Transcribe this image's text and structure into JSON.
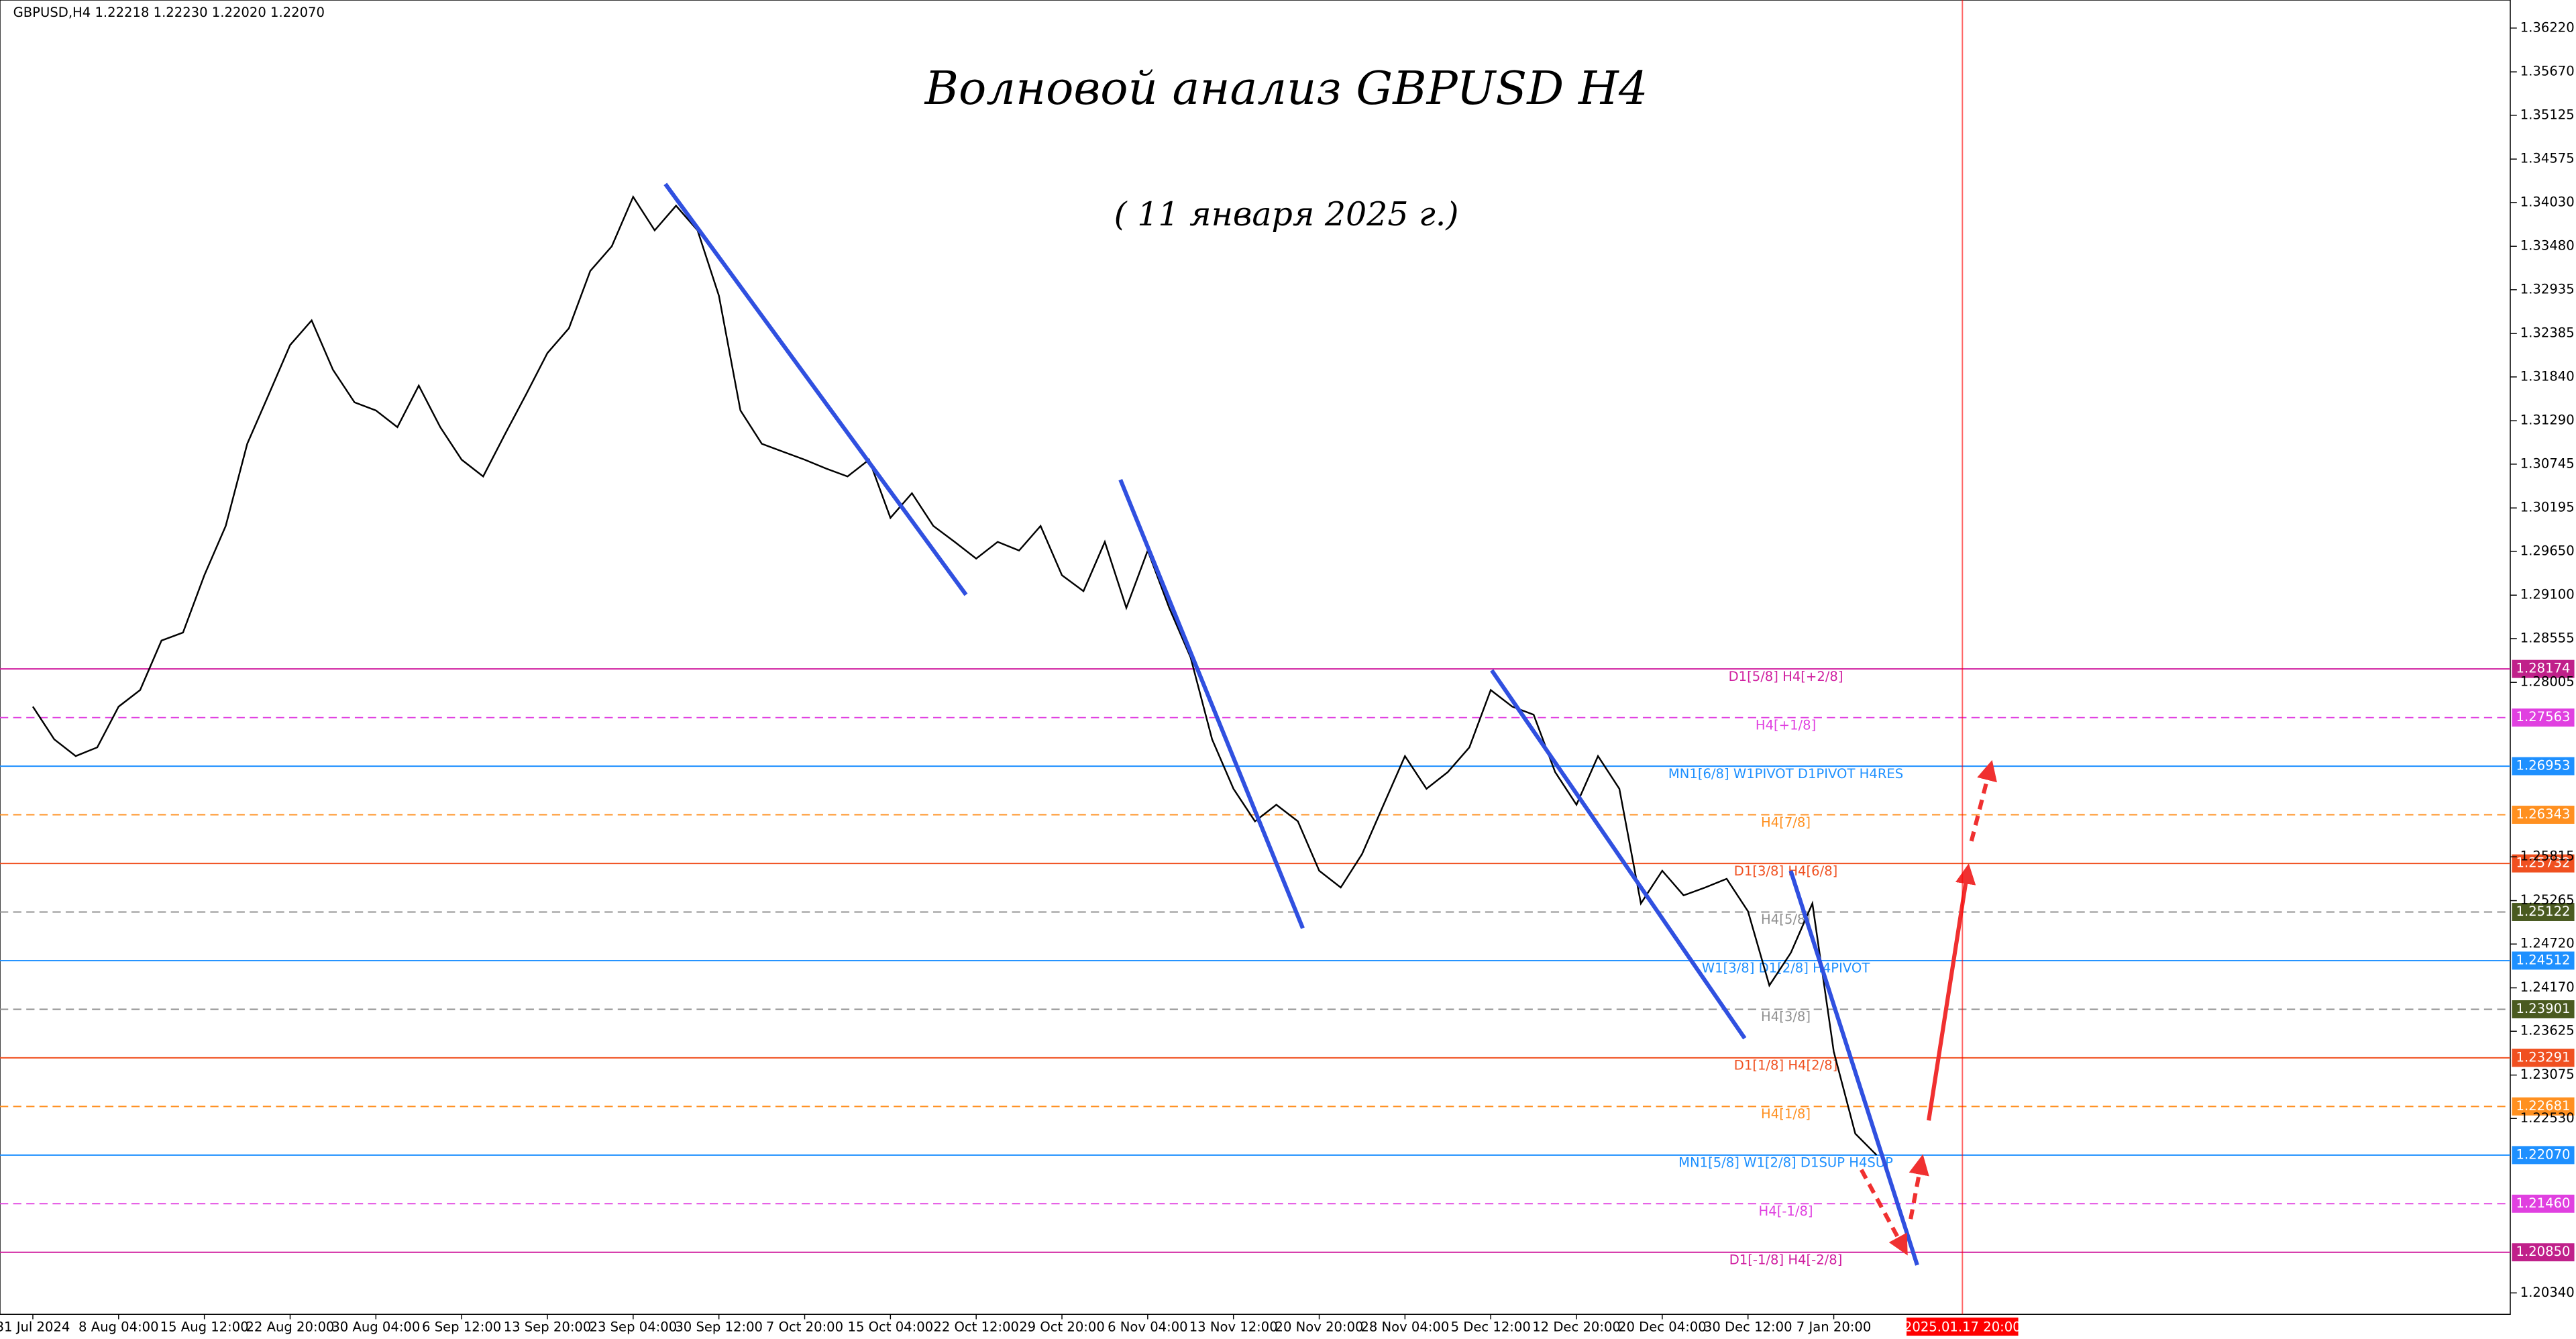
{
  "chart_data": {
    "type": "line",
    "header": "GBPUSD,H4  1.22218 1.22230 1.22020 1.22070",
    "title": "Волновой анализ GBPUSD H4",
    "subtitle": "( 11 января 2025 г.)",
    "categories": [
      "31 Jul 2024",
      null,
      null,
      null,
      "8 Aug 04:00",
      null,
      null,
      null,
      "15 Aug 12:00",
      null,
      null,
      null,
      "22 Aug 20:00",
      null,
      null,
      null,
      "30 Aug 04:00",
      null,
      null,
      null,
      "6 Sep 12:00",
      null,
      null,
      null,
      "13 Sep 20:00",
      null,
      null,
      null,
      "23 Sep 04:00",
      null,
      null,
      null,
      "30 Sep 12:00",
      null,
      null,
      null,
      "7 Oct 20:00",
      null,
      null,
      null,
      "15 Oct 04:00",
      null,
      null,
      null,
      "22 Oct 12:00",
      null,
      null,
      null,
      "29 Oct 20:00",
      null,
      null,
      null,
      "6 Nov 04:00",
      null,
      null,
      null,
      "13 Nov 12:00",
      null,
      null,
      null,
      "20 Nov 20:00",
      null,
      null,
      null,
      "28 Nov 04:00",
      null,
      null,
      null,
      "5 Dec 12:00",
      null,
      null,
      null,
      "12 Dec 20:00",
      null,
      null,
      null,
      "20 Dec 04:00",
      null,
      null,
      null,
      "30 Dec 12:00",
      null,
      null,
      null,
      "7 Jan 20:00",
      null,
      null,
      null,
      null,
      null,
      "2025.01.17 20:00"
    ],
    "series": [
      {
        "name": "GBPUSD",
        "color": "#000000",
        "values": [
          1.277,
          1.2729,
          1.2708,
          1.2719,
          1.277,
          1.2791,
          1.2853,
          1.2863,
          1.2935,
          1.2997,
          1.31,
          1.3162,
          1.3224,
          1.3255,
          1.3193,
          1.3152,
          1.3142,
          1.3121,
          1.3173,
          1.3121,
          1.308,
          1.3059,
          1.3111,
          1.3162,
          1.3214,
          1.3245,
          1.3317,
          1.3348,
          1.341,
          1.3368,
          1.3399,
          1.3368,
          1.3286,
          1.3142,
          1.31,
          1.309,
          1.308,
          1.3069,
          1.3059,
          1.308,
          1.3007,
          1.3038,
          1.2997,
          1.2977,
          1.2956,
          1.2977,
          1.2966,
          1.2997,
          1.2935,
          1.2915,
          1.2977,
          1.2894,
          1.2966,
          1.2894,
          1.2832,
          1.2729,
          1.2667,
          1.2626,
          1.2647,
          1.2626,
          1.2564,
          1.2543,
          1.2585,
          1.2647,
          1.2708,
          1.2667,
          1.2688,
          1.2719,
          1.2791,
          1.277,
          1.276,
          1.2688,
          1.2647,
          1.2708,
          1.2667,
          1.2523,
          1.2564,
          1.2533,
          1.2543,
          1.2554,
          1.2513,
          1.242,
          1.2461,
          1.2523,
          1.2337,
          1.2234,
          1.2207,
          null,
          null,
          null,
          null
        ]
      }
    ],
    "ylim": [
      1.20071,
      1.36572
    ],
    "yticks": [
      {
        "value": 1.3622,
        "label": "1.36220"
      },
      {
        "value": 1.3567,
        "label": "1.35670"
      },
      1.35125,
      1.34575,
      {
        "value": 1.3403,
        "label": "1.34030"
      },
      {
        "value": 1.3348,
        "label": "1.33480"
      },
      1.32935,
      1.32385,
      {
        "value": 1.3184,
        "label": "1.31840"
      },
      {
        "value": 1.3129,
        "label": "1.31290"
      },
      1.30745,
      1.30195,
      {
        "value": 1.2965,
        "label": "1.29650"
      },
      {
        "value": 1.291,
        "label": "1.29100"
      },
      1.28555,
      1.28005,
      1.25815,
      1.25265,
      {
        "value": 1.2472,
        "label": "1.24720"
      },
      {
        "value": 1.2417,
        "label": "1.24170"
      },
      1.23625,
      1.23075,
      {
        "value": 1.2253,
        "label": "1.22530"
      },
      {
        "value": 1.2034,
        "label": "1.20340"
      }
    ],
    "levels": [
      {
        "label": "D1[5/8] H4[+2/8]",
        "value": 1.28174,
        "tag": "1.28174",
        "color": "#d020a0",
        "tag_color": "#c0208a",
        "dashed": false
      },
      {
        "label": "H4[+1/8]",
        "value": 1.27563,
        "tag": "1.27563",
        "color": "#e040e0",
        "tag_color": "#e040e0",
        "dashed": true
      },
      {
        "label": "MN1[6/8] W1PIVOT D1PIVOT H4RES",
        "value": 1.26953,
        "tag": "1.26953",
        "color": "#1e90ff",
        "tag_color": "#1e90ff",
        "dashed": false
      },
      {
        "label": "H4[7/8]",
        "value": 1.26343,
        "tag": "1.26343",
        "color": "#ff9020",
        "tag_color": "#ff9020",
        "dashed": true
      },
      {
        "label": "D1[3/8] H4[6/8]",
        "value": 1.25732,
        "tag": "1.25732",
        "color": "#f05020",
        "tag_color": "#f05020",
        "dashed": false
      },
      {
        "label": "H4[5/8]",
        "value": 1.25122,
        "tag": "1.25122",
        "color": "#909090",
        "tag_color": "#4a5a20",
        "dashed": true
      },
      {
        "label": "W1[3/8] D1[2/8] H4PIVOT",
        "value": 1.24512,
        "tag": "1.24512",
        "color": "#1e90ff",
        "tag_color": "#1e90ff",
        "dashed": false
      },
      {
        "label": "H4[3/8]",
        "value": 1.23901,
        "tag": "1.23901",
        "color": "#909090",
        "tag_color": "#4a5a20",
        "dashed": true
      },
      {
        "label": "D1[1/8] H4[2/8]",
        "value": 1.23291,
        "tag": "1.23291",
        "color": "#f05020",
        "tag_color": "#f05020",
        "dashed": false
      },
      {
        "label": "H4[1/8]",
        "value": 1.22681,
        "tag": "1.22681",
        "color": "#ff9020",
        "tag_color": "#ff9020",
        "dashed": true
      },
      {
        "label": "MN1[5/8] W1[2/8] D1SUP H4SUP",
        "value": 1.2207,
        "tag": "1.22070",
        "color": "#1e90ff",
        "tag_color": "#1e90ff",
        "dashed": false
      },
      {
        "label": "H4[-1/8]",
        "value": 1.2146,
        "tag": "1.21460",
        "color": "#e040e0",
        "tag_color": "#e040e0",
        "dashed": true
      },
      {
        "label": "D1[-1/8] H4[-2/8]",
        "value": 1.2085,
        "tag": "1.20850",
        "color": "#d020a0",
        "tag_color": "#c0208a",
        "dashed": false
      }
    ],
    "cursor_color": "#ff0000"
  }
}
